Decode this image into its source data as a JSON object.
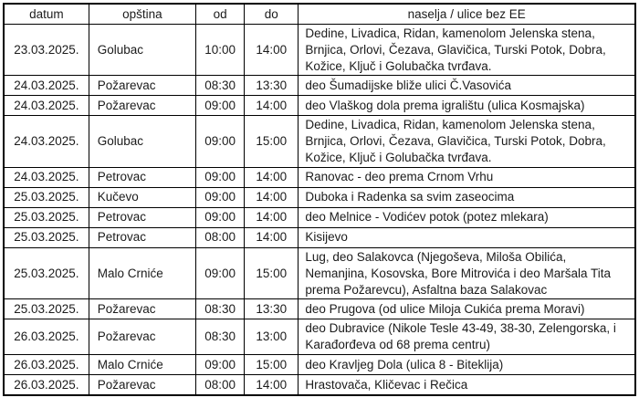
{
  "colors": {
    "border": "#000000",
    "text": "#1b1b1b",
    "background": "#ffffff"
  },
  "table": {
    "headers": {
      "datum": "datum",
      "opstina": "opština",
      "od": "od",
      "do": "do",
      "naselja": "naselja / ulice bez EE"
    },
    "rows": [
      {
        "datum": "23.03.2025.",
        "opstina": "Golubac",
        "od": "10:00",
        "do": "14:00",
        "naselja": "Dedine, Livadica,  Ridan, kamenolom Jelenska stena, Brnjica, Orlovi, Čezava, Glavičica, Turski Potok, Dobra, Kožice, Ključ i Golubačka tvrđava."
      },
      {
        "datum": "24.03.2025.",
        "opstina": "Požarevac",
        "od": "08:30",
        "do": "13:30",
        "naselja": "deo Šumadijske bliže ulici Č.Vasovića"
      },
      {
        "datum": "24.03.2025.",
        "opstina": "Požarevac",
        "od": "09:00",
        "do": "14:00",
        "naselja": "deo Vlaškog dola prema igralištu (ulica Kosmajska)"
      },
      {
        "datum": "24.03.2025.",
        "opstina": "Golubac",
        "od": "09:00",
        "do": "15:00",
        "naselja": "Dedine, Livadica,  Ridan, kamenolom Jelenska stena, Brnjica, Orlovi, Čezava, Glavičica, Turski Potok, Dobra, Kožice, Ključ i Golubačka tvrđava."
      },
      {
        "datum": "24.03.2025.",
        "opstina": "Petrovac",
        "od": "09:00",
        "do": "14:00",
        "naselja": "Ranovac - deo prema Crnom Vrhu"
      },
      {
        "datum": "25.03.2025.",
        "opstina": "Kučevo",
        "od": "09:00",
        "do": "14:00",
        "naselja": "Duboka i Radenka sa svim zaseocima"
      },
      {
        "datum": "25.03.2025.",
        "opstina": "Petrovac",
        "od": "09:00",
        "do": "14:00",
        "naselja": "deo Melnice - Vodićev potok (potez mlekara)"
      },
      {
        "datum": "25.03.2025.",
        "opstina": "Petrovac",
        "od": "08:00",
        "do": "14:00",
        "naselja": "Kisijevo"
      },
      {
        "datum": "25.03.2025.",
        "opstina": "Malo Crniće",
        "od": "09:00",
        "do": "15:00",
        "naselja": "Lug, deo Salakovca (Njegoševa, Miloša Obilića, Nemanjina, Kosovska, Bore Mitrovića i deo Maršala Tita prema Požarevcu), Asfaltna baza Salakovac"
      },
      {
        "datum": "25.03.2025.",
        "opstina": "Požarevac",
        "od": "08:30",
        "do": "13:30",
        "naselja": "deo Prugova (od ulice Miloja Cukića prema Moravi)"
      },
      {
        "datum": "26.03.2025.",
        "opstina": "Požarevac",
        "od": "08:30",
        "do": "13:00",
        "naselja": "deo Dubravice (Nikole Tesle 43-49, 38-30, Zelengorska, i Karađorđeva od 68 prema centru)"
      },
      {
        "datum": "26.03.2025.",
        "opstina": "Malo Crniće",
        "od": "09:00",
        "do": "15:00",
        "naselja": "deo Kravljeg Dola (ulica 8 - Biteklija)"
      },
      {
        "datum": "26.03.2025.",
        "opstina": "Požarevac",
        "od": "08:00",
        "do": "14:00",
        "naselja": "Hrastovača, Kličevac i Rečica"
      }
    ]
  }
}
